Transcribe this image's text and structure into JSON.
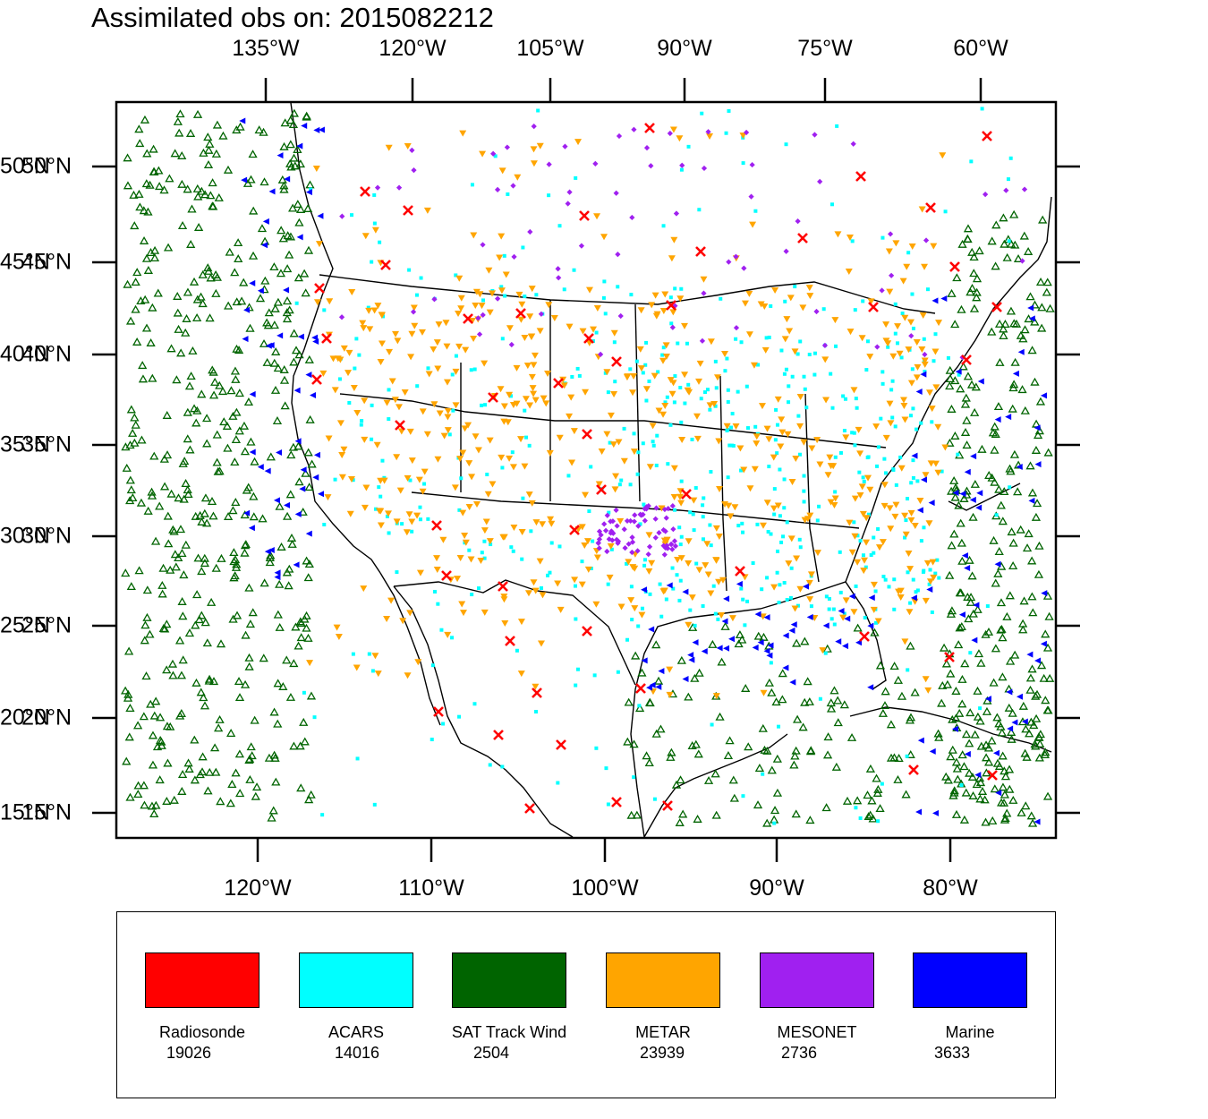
{
  "title": "Assimilated obs on: 2015082212",
  "axes": {
    "top_ticks": [
      "135°W",
      "120°W",
      "105°W",
      "90°W",
      "75°W",
      "60°W"
    ],
    "bottom_ticks": [
      "120°W",
      "110°W",
      "100°W",
      "90°W",
      "80°W"
    ],
    "lat_ticks": [
      "50°N",
      "45°N",
      "40°N",
      "35°N",
      "30°N",
      "25°N",
      "20°N",
      "15°N"
    ]
  },
  "legend": [
    {
      "name": "Radiosonde",
      "count": "19026",
      "color": "#ff0000"
    },
    {
      "name": "ACARS",
      "count": "14016",
      "color": "#00ffff"
    },
    {
      "name": "SAT Track Wind",
      "count": "2504",
      "color": "#006400"
    },
    {
      "name": "METAR",
      "count": "23939",
      "color": "#ffa500"
    },
    {
      "name": "MESONET",
      "count": "2736",
      "color": "#a020f0"
    },
    {
      "name": "Marine",
      "count": "3633",
      "color": "#0000ff"
    }
  ],
  "colors": {
    "frame": "#000000",
    "coastline": "#000000",
    "background": "#ffffff"
  }
}
